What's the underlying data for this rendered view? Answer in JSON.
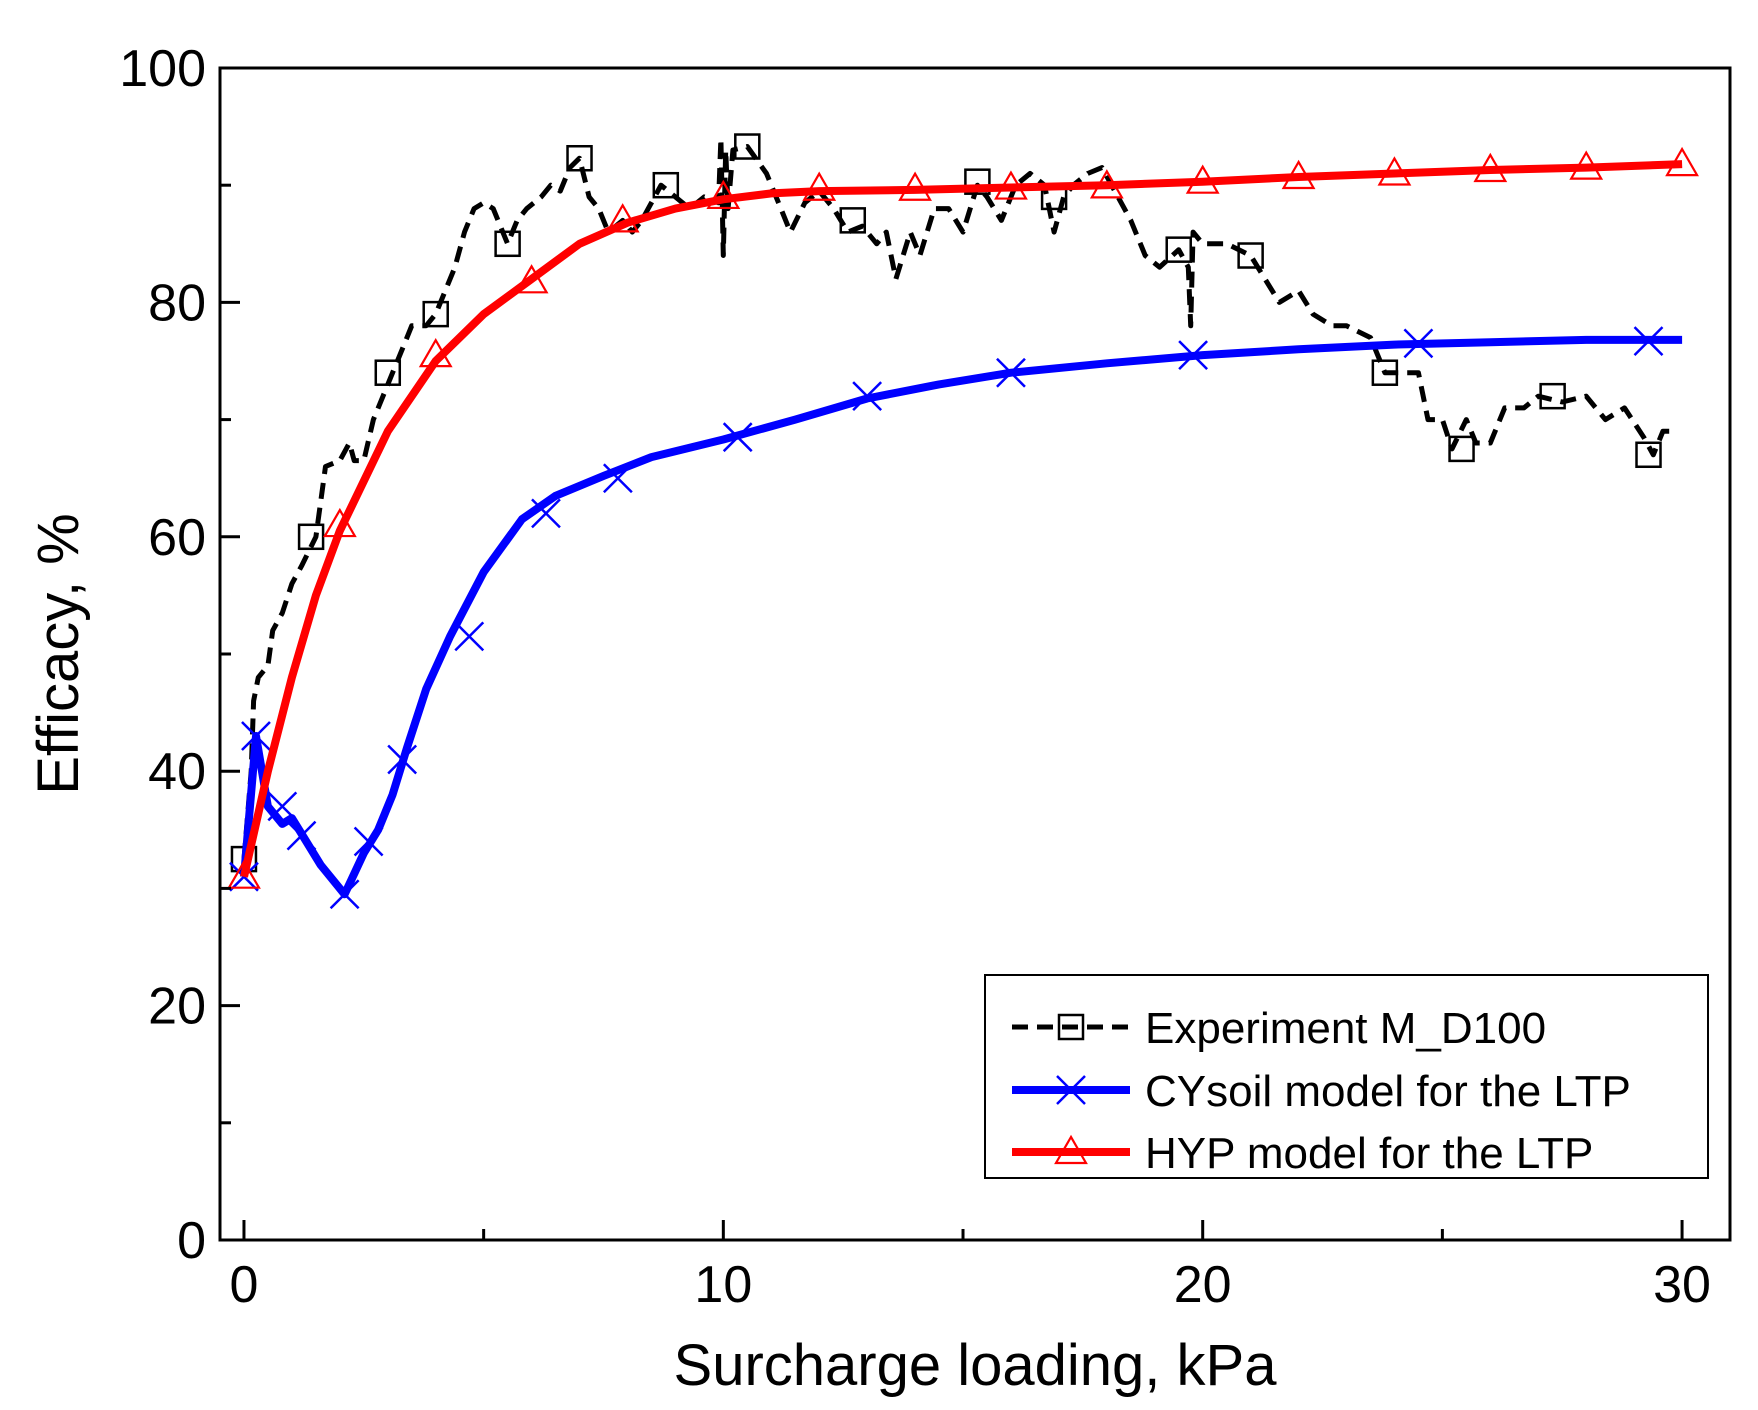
{
  "chart_data": {
    "type": "line",
    "title": "",
    "xlabel": "Surcharge loading, kPa",
    "ylabel": "Efficacy, %",
    "xlim": [
      -0.5,
      31
    ],
    "ylim": [
      0,
      100
    ],
    "x_ticks": [
      0,
      10,
      20,
      30
    ],
    "x_tick_labels": [
      "0",
      "10",
      "20",
      "30"
    ],
    "x_minor_ticks": [
      5,
      15,
      25
    ],
    "y_ticks": [
      0,
      20,
      40,
      60,
      80,
      100
    ],
    "y_tick_labels": [
      "0",
      "20",
      "40",
      "60",
      "80",
      "100"
    ],
    "y_minor_ticks": [
      10,
      30,
      50,
      70,
      90
    ],
    "grid": false,
    "legend_position": "bottom-right",
    "series": [
      {
        "name": "Experiment M_D100",
        "color": "#000000",
        "line_style": "dashed",
        "marker": "square",
        "points": [
          [
            0,
            32.5
          ],
          [
            0.15,
            40
          ],
          [
            0.2,
            46
          ],
          [
            0.3,
            48
          ],
          [
            0.5,
            49
          ],
          [
            0.6,
            52
          ],
          [
            0.8,
            53.5
          ],
          [
            1.0,
            56
          ],
          [
            1.2,
            57.5
          ],
          [
            1.5,
            60
          ],
          [
            1.7,
            66
          ],
          [
            2.0,
            66.5
          ],
          [
            2.2,
            68
          ],
          [
            2.3,
            66.5
          ],
          [
            2.5,
            66.5
          ],
          [
            2.7,
            70
          ],
          [
            2.9,
            72
          ],
          [
            3.1,
            74
          ],
          [
            3.3,
            76
          ],
          [
            3.5,
            78
          ],
          [
            3.8,
            78
          ],
          [
            4.0,
            79
          ],
          [
            4.2,
            81
          ],
          [
            4.4,
            83
          ],
          [
            4.6,
            86
          ],
          [
            4.8,
            88
          ],
          [
            5.0,
            88.5
          ],
          [
            5.2,
            88
          ],
          [
            5.4,
            86
          ],
          [
            5.5,
            85
          ],
          [
            5.7,
            87
          ],
          [
            5.9,
            88
          ],
          [
            6.2,
            89
          ],
          [
            6.4,
            90
          ],
          [
            6.6,
            89.5
          ],
          [
            6.8,
            91.5
          ],
          [
            7.0,
            92.3
          ],
          [
            7.2,
            89
          ],
          [
            7.4,
            88
          ],
          [
            7.6,
            86
          ],
          [
            7.9,
            87
          ],
          [
            8.1,
            86
          ],
          [
            8.3,
            87
          ],
          [
            8.5,
            88.5
          ],
          [
            8.7,
            90
          ],
          [
            9.0,
            89
          ],
          [
            9.3,
            88
          ],
          [
            9.6,
            89
          ],
          [
            9.9,
            88.5
          ],
          [
            9.95,
            94
          ],
          [
            10.0,
            84
          ],
          [
            10.05,
            93
          ],
          [
            10.1,
            88
          ],
          [
            10.2,
            93
          ],
          [
            10.5,
            93.3
          ],
          [
            10.9,
            91
          ],
          [
            11.2,
            88
          ],
          [
            11.4,
            86
          ],
          [
            11.7,
            88.5
          ],
          [
            12.0,
            89.5
          ],
          [
            12.3,
            88
          ],
          [
            12.6,
            86
          ],
          [
            12.9,
            86.5
          ],
          [
            13.2,
            85
          ],
          [
            13.4,
            86
          ],
          [
            13.6,
            82
          ],
          [
            13.9,
            86
          ],
          [
            14.1,
            84
          ],
          [
            14.4,
            88
          ],
          [
            14.7,
            88
          ],
          [
            15.0,
            86
          ],
          [
            15.3,
            90
          ],
          [
            15.5,
            89
          ],
          [
            15.8,
            87
          ],
          [
            16.1,
            90
          ],
          [
            16.4,
            91
          ],
          [
            16.7,
            90
          ],
          [
            16.9,
            86
          ],
          [
            17.1,
            89
          ],
          [
            17.3,
            90
          ],
          [
            17.6,
            91
          ],
          [
            17.9,
            91.5
          ],
          [
            18.1,
            90
          ],
          [
            18.5,
            87
          ],
          [
            18.8,
            84
          ],
          [
            19.1,
            83
          ],
          [
            19.5,
            84.5
          ],
          [
            19.7,
            83
          ],
          [
            19.75,
            78
          ],
          [
            19.8,
            86
          ],
          [
            20.0,
            85
          ],
          [
            20.5,
            85
          ],
          [
            21.0,
            84
          ],
          [
            21.3,
            82
          ],
          [
            21.6,
            80
          ],
          [
            22.0,
            81
          ],
          [
            22.3,
            79
          ],
          [
            22.7,
            78
          ],
          [
            23.0,
            78
          ],
          [
            23.5,
            77
          ],
          [
            23.8,
            74
          ],
          [
            24.2,
            74
          ],
          [
            24.5,
            74
          ],
          [
            24.7,
            70
          ],
          [
            25.0,
            70
          ],
          [
            25.2,
            67.5
          ],
          [
            25.5,
            70
          ],
          [
            25.7,
            68
          ],
          [
            26.0,
            68
          ],
          [
            26.3,
            71
          ],
          [
            26.7,
            71
          ],
          [
            27.0,
            72
          ],
          [
            27.5,
            71.5
          ],
          [
            28.0,
            72
          ],
          [
            28.4,
            70
          ],
          [
            28.8,
            71
          ],
          [
            29.2,
            68.5
          ],
          [
            29.4,
            67
          ],
          [
            29.6,
            69
          ],
          [
            29.9,
            69
          ]
        ],
        "marker_points": [
          [
            0,
            32.5
          ],
          [
            1.4,
            60
          ],
          [
            3.0,
            74
          ],
          [
            4.0,
            79
          ],
          [
            5.5,
            85
          ],
          [
            7.0,
            92.3
          ],
          [
            8.8,
            90
          ],
          [
            10.5,
            93.3
          ],
          [
            12.7,
            87
          ],
          [
            15.3,
            90.3
          ],
          [
            16.9,
            89
          ],
          [
            19.5,
            84.5
          ],
          [
            21.0,
            84
          ],
          [
            23.8,
            74
          ],
          [
            25.4,
            67.5
          ],
          [
            27.3,
            72
          ],
          [
            29.3,
            67
          ]
        ]
      },
      {
        "name": "CYsoil model for the LTP",
        "color": "#0000ff",
        "line_style": "solid",
        "marker": "x",
        "points": [
          [
            0,
            31
          ],
          [
            0.25,
            43
          ],
          [
            0.5,
            37
          ],
          [
            0.8,
            35.5
          ],
          [
            1.0,
            36
          ],
          [
            1.3,
            34
          ],
          [
            1.6,
            32
          ],
          [
            2.1,
            29.5
          ],
          [
            2.5,
            33
          ],
          [
            2.8,
            35
          ],
          [
            3.1,
            38
          ],
          [
            3.4,
            42
          ],
          [
            3.8,
            47
          ],
          [
            4.3,
            51.5
          ],
          [
            5.0,
            57
          ],
          [
            5.8,
            61.5
          ],
          [
            6.5,
            63.5
          ],
          [
            7.5,
            65.2
          ],
          [
            8.5,
            66.8
          ],
          [
            10.0,
            68.3
          ],
          [
            11.5,
            70
          ],
          [
            13.0,
            71.8
          ],
          [
            14.5,
            73
          ],
          [
            16.0,
            74
          ],
          [
            18.0,
            74.8
          ],
          [
            20.0,
            75.5
          ],
          [
            22.0,
            76
          ],
          [
            24.0,
            76.4
          ],
          [
            26.0,
            76.6
          ],
          [
            28.0,
            76.8
          ],
          [
            30.0,
            76.8
          ]
        ],
        "marker_points": [
          [
            0,
            31
          ],
          [
            0.25,
            43
          ],
          [
            0.8,
            37
          ],
          [
            1.2,
            34.5
          ],
          [
            2.1,
            29.5
          ],
          [
            2.6,
            34
          ],
          [
            3.3,
            41
          ],
          [
            4.7,
            51.5
          ],
          [
            6.3,
            62
          ],
          [
            7.8,
            65
          ],
          [
            10.3,
            68.5
          ],
          [
            13.0,
            72
          ],
          [
            16.0,
            74
          ],
          [
            19.8,
            75.5
          ],
          [
            24.5,
            76.5
          ],
          [
            29.3,
            76.7
          ]
        ]
      },
      {
        "name": "HYP model for the LTP",
        "color": "#ff0000",
        "line_style": "solid",
        "marker": "triangle",
        "points": [
          [
            0,
            31
          ],
          [
            0.5,
            40
          ],
          [
            1.0,
            48
          ],
          [
            1.5,
            55
          ],
          [
            2.0,
            60.5
          ],
          [
            3.0,
            69
          ],
          [
            4.0,
            75
          ],
          [
            5.0,
            79
          ],
          [
            6.0,
            82
          ],
          [
            7.0,
            85
          ],
          [
            8.0,
            86.8
          ],
          [
            9.0,
            88
          ],
          [
            10.0,
            88.8
          ],
          [
            11.0,
            89.3
          ],
          [
            12.0,
            89.5
          ],
          [
            14.0,
            89.6
          ],
          [
            16.0,
            89.8
          ],
          [
            18.0,
            90
          ],
          [
            20.0,
            90.3
          ],
          [
            22.0,
            90.7
          ],
          [
            24.0,
            91
          ],
          [
            26.0,
            91.3
          ],
          [
            28.0,
            91.5
          ],
          [
            30.0,
            91.8
          ]
        ],
        "marker_points": [
          [
            0,
            31
          ],
          [
            2.0,
            61
          ],
          [
            4.0,
            75.5
          ],
          [
            6.0,
            81.8
          ],
          [
            7.9,
            87
          ],
          [
            10.0,
            89
          ],
          [
            12.0,
            89.7
          ],
          [
            14.0,
            89.7
          ],
          [
            16.0,
            89.8
          ],
          [
            18.0,
            89.9
          ],
          [
            20.0,
            90.3
          ],
          [
            22.0,
            90.7
          ],
          [
            24.0,
            91
          ],
          [
            26.0,
            91.3
          ],
          [
            28.0,
            91.5
          ],
          [
            30.0,
            91.8
          ]
        ]
      }
    ]
  }
}
